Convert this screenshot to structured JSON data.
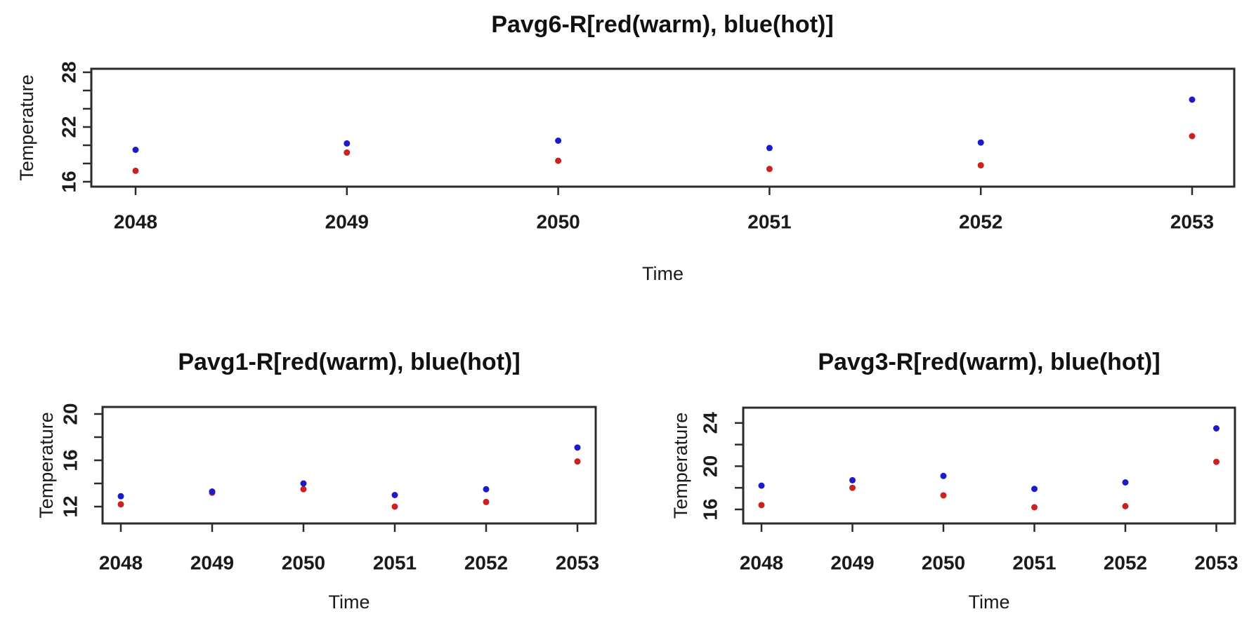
{
  "page": {
    "background": "#ffffff"
  },
  "chart_data": [
    {
      "id": "pavg6",
      "type": "scatter",
      "title": "Pavg6-R[red(warm), blue(hot)]",
      "xlabel": "Time",
      "ylabel": "Temperature",
      "legend_note": "red = warm, blue = hot",
      "x": [
        2048,
        2049,
        2050,
        2051,
        2052,
        2053
      ],
      "y_axis": {
        "ticks": [
          16,
          18,
          20,
          22,
          24,
          26,
          28
        ],
        "labeled_ticks": [
          16,
          22,
          28
        ],
        "ylim": [
          15.5,
          28.4
        ],
        "grid": false
      },
      "series": [
        {
          "name": "warm",
          "color": "#cc2121",
          "marker": "filled-circle",
          "values": [
            17.2,
            19.2,
            18.3,
            17.4,
            17.8,
            21.0
          ]
        },
        {
          "name": "hot",
          "color": "#1b1bc8",
          "marker": "filled-circle",
          "values": [
            19.5,
            20.2,
            20.5,
            19.7,
            20.3,
            25.0
          ]
        }
      ]
    },
    {
      "id": "pavg1",
      "type": "scatter",
      "title": "Pavg1-R[red(warm), blue(hot)]",
      "xlabel": "Time",
      "ylabel": "Temperature",
      "legend_note": "red = warm, blue = hot",
      "x": [
        2048,
        2049,
        2050,
        2051,
        2052,
        2053
      ],
      "y_axis": {
        "ticks": [
          12,
          14,
          16,
          18,
          20
        ],
        "labeled_ticks": [
          12,
          16,
          20
        ],
        "ylim": [
          10.6,
          20.6
        ],
        "grid": false
      },
      "series": [
        {
          "name": "warm",
          "color": "#cc2121",
          "marker": "filled-circle",
          "values": [
            12.2,
            13.2,
            13.5,
            12.0,
            12.4,
            15.9
          ]
        },
        {
          "name": "hot",
          "color": "#1b1bc8",
          "marker": "filled-circle",
          "values": [
            12.9,
            13.3,
            14.0,
            13.0,
            13.5,
            17.1
          ]
        }
      ]
    },
    {
      "id": "pavg3",
      "type": "scatter",
      "title": "Pavg3-R[red(warm), blue(hot)]",
      "xlabel": "Time",
      "ylabel": "Temperature",
      "legend_note": "red = warm, blue = hot",
      "x": [
        2048,
        2049,
        2050,
        2051,
        2052,
        2053
      ],
      "y_axis": {
        "ticks": [
          16,
          18,
          20,
          22,
          24
        ],
        "labeled_ticks": [
          16,
          20,
          24
        ],
        "ylim": [
          14.7,
          25.4
        ],
        "grid": false
      },
      "series": [
        {
          "name": "warm",
          "color": "#cc2121",
          "marker": "filled-circle",
          "values": [
            16.4,
            18.0,
            17.3,
            16.2,
            16.3,
            20.4
          ]
        },
        {
          "name": "hot",
          "color": "#1b1bc8",
          "marker": "filled-circle",
          "values": [
            18.2,
            18.7,
            19.1,
            17.9,
            18.5,
            23.5
          ]
        }
      ]
    }
  ]
}
